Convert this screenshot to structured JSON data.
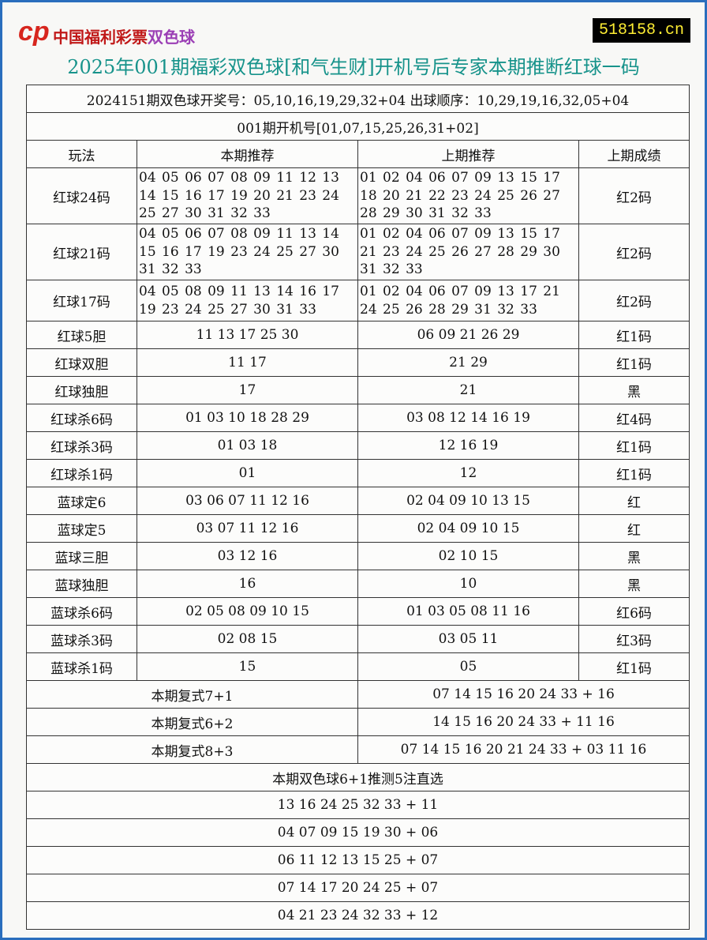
{
  "logo": {
    "text": "中国福利彩票",
    "suffix": "双色球"
  },
  "site": "518158.cn",
  "title": "2025年001期福彩双色球[和气生财]开机号后专家本期推断红球一码",
  "draw_info": "2024151期双色球开奖号：05,10,16,19,29,32+04 出球顺序：10,29,19,16,32,05+04",
  "machine_info": "001期开机号[01,07,15,25,26,31+02]",
  "headers": [
    "玩法",
    "本期推荐",
    "上期推荐",
    "上期成绩"
  ],
  "rows": [
    {
      "name": "红球24码",
      "current": "04 05 06 07 08 09 11 12 13 14 15 16 17 19 20 21 23 24 25 27 30 31 32 33",
      "previous": "01 02 04 06 07 09 13 15 17 18 20 21 22 23 24 25 26 27 28 29 30 31 32 33",
      "result": "红2码",
      "multi": true
    },
    {
      "name": "红球21码",
      "current": "04 05 06 07 08 09 11 13 14 15 16 17 19 23 24 25 27 30 31 32 33",
      "previous": "01 02 04 06 07 09 13 15 17 21 23 24 25 26 27 28 29 30 31 32 33",
      "result": "红2码",
      "multi": true
    },
    {
      "name": "红球17码",
      "current": "04 05 08 09 11 13 14 16 17 19 23 24 25 27 30 31 33",
      "previous": "01 02 04 06 07 09 13 17 21 24 25 26 28 29 31 32 33",
      "result": "红2码",
      "multi": true
    },
    {
      "name": "红球5胆",
      "current": "11 13 17 25 30",
      "previous": "06 09 21 26 29",
      "result": "红1码"
    },
    {
      "name": "红球双胆",
      "current": "11 17",
      "previous": "21 29",
      "result": "红1码"
    },
    {
      "name": "红球独胆",
      "current": "17",
      "previous": "21",
      "result": "黑"
    },
    {
      "name": "红球杀6码",
      "current": "01 03 10 18 28 29",
      "previous": "03 08 12 14 16 19",
      "result": "红4码"
    },
    {
      "name": "红球杀3码",
      "current": "01 03 18",
      "previous": "12 16 19",
      "result": "红1码"
    },
    {
      "name": "红球杀1码",
      "current": "01",
      "previous": "12",
      "result": "红1码"
    },
    {
      "name": "蓝球定6",
      "current": "03 06 07 11 12 16",
      "previous": "02 04 09 10 13 15",
      "result": "红"
    },
    {
      "name": "蓝球定5",
      "current": "03 07 11 12 16",
      "previous": "02 04 09 10 15",
      "result": "红"
    },
    {
      "name": "蓝球三胆",
      "current": "03 12 16",
      "previous": "02 10 15",
      "result": "黑"
    },
    {
      "name": "蓝球独胆",
      "current": "16",
      "previous": "10",
      "result": "黑"
    },
    {
      "name": "蓝球杀6码",
      "current": "02 05 08 09 10 15",
      "previous": "01 03 05 08 11 16",
      "result": "红6码"
    },
    {
      "name": "蓝球杀3码",
      "current": "02 08 15",
      "previous": "03 05 11",
      "result": "红3码"
    },
    {
      "name": "蓝球杀1码",
      "current": "15",
      "previous": "05",
      "result": "红1码"
    }
  ],
  "compound": [
    {
      "label": "本期复式7+1",
      "value": "07 14 15 16 20 24 33 + 16"
    },
    {
      "label": "本期复式6+2",
      "value": "14 15 16 20 24 33 + 11 16"
    },
    {
      "label": "本期复式8+3",
      "value": "07 14 15 16 20 21 24 33 + 03 11 16"
    }
  ],
  "picks_title": "本期双色球6+1推测5注直选",
  "picks": [
    "13 16 24 25 32 33 + 11",
    "04 07 09 15 19 30 + 06",
    "06 11 12 13 15 25 + 07",
    "07 14 17 20 24 25 + 07",
    "04 21 23 24 32 33 + 12"
  ]
}
